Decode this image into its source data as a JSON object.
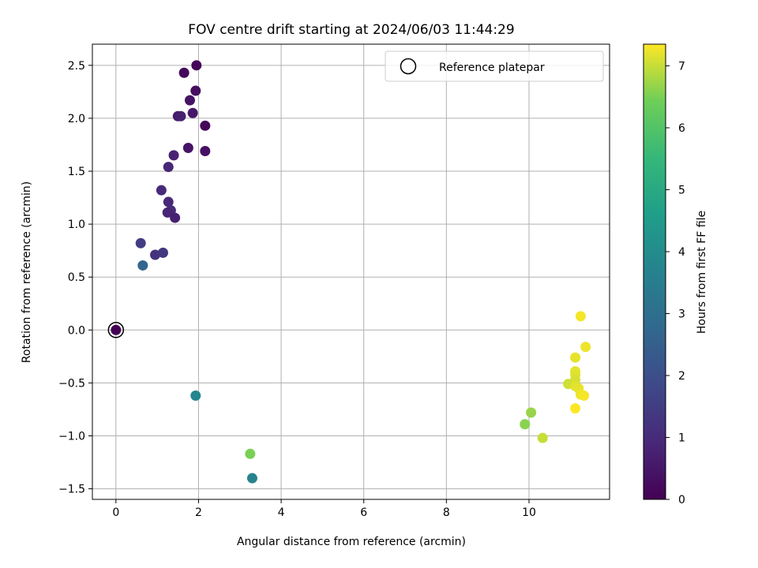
{
  "chart_data": {
    "type": "scatter",
    "title": "FOV centre drift starting at 2024/06/03 11:44:29",
    "xlabel": "Angular distance from reference (arcmin)",
    "ylabel": "Rotation from reference (arcmin)",
    "xlim": [
      -0.57,
      11.95
    ],
    "ylim": [
      -1.6,
      2.7
    ],
    "x_ticks": [
      0,
      2,
      4,
      6,
      8,
      10
    ],
    "y_ticks": [
      -1.5,
      -1.0,
      -0.5,
      0.0,
      0.5,
      1.0,
      1.5,
      2.0,
      2.5
    ],
    "x_tick_labels": [
      "0",
      "2",
      "4",
      "6",
      "8",
      "10"
    ],
    "y_tick_labels": [
      "−1.5",
      "−1.0",
      "−0.5",
      "0.0",
      "0.5",
      "1.0",
      "1.5",
      "2.0",
      "2.5"
    ],
    "grid": true,
    "colormap": "viridis",
    "colorbar": {
      "label": "Hours from first FF file",
      "range": [
        0,
        7.35
      ],
      "ticks": [
        0,
        1,
        2,
        3,
        4,
        5,
        6,
        7
      ],
      "tick_labels": [
        "0",
        "1",
        "2",
        "3",
        "4",
        "5",
        "6",
        "7"
      ]
    },
    "legend": {
      "position": "top-right",
      "entries": [
        "Reference platepar"
      ]
    },
    "reference_point": {
      "x": 0.0,
      "y": 0.0,
      "hours": 0.0
    },
    "points": [
      {
        "x": 1.95,
        "y": 2.5,
        "hours": 0.1
      },
      {
        "x": 1.65,
        "y": 2.43,
        "hours": 0.2
      },
      {
        "x": 1.93,
        "y": 2.26,
        "hours": 0.3
      },
      {
        "x": 1.79,
        "y": 2.17,
        "hours": 0.4
      },
      {
        "x": 1.86,
        "y": 2.05,
        "hours": 0.5
      },
      {
        "x": 1.5,
        "y": 2.02,
        "hours": 0.6
      },
      {
        "x": 1.57,
        "y": 2.02,
        "hours": 0.7
      },
      {
        "x": 2.16,
        "y": 1.93,
        "hours": 0.15
      },
      {
        "x": 1.75,
        "y": 1.72,
        "hours": 0.45
      },
      {
        "x": 2.16,
        "y": 1.69,
        "hours": 0.35
      },
      {
        "x": 1.4,
        "y": 1.65,
        "hours": 0.8
      },
      {
        "x": 1.27,
        "y": 1.54,
        "hours": 0.9
      },
      {
        "x": 1.1,
        "y": 1.32,
        "hours": 1.0
      },
      {
        "x": 1.27,
        "y": 1.21,
        "hours": 0.95
      },
      {
        "x": 1.33,
        "y": 1.13,
        "hours": 1.05
      },
      {
        "x": 1.25,
        "y": 1.11,
        "hours": 0.85
      },
      {
        "x": 1.43,
        "y": 1.06,
        "hours": 0.75
      },
      {
        "x": 0.6,
        "y": 0.82,
        "hours": 1.5
      },
      {
        "x": 0.95,
        "y": 0.71,
        "hours": 1.2
      },
      {
        "x": 1.14,
        "y": 0.73,
        "hours": 1.35
      },
      {
        "x": 0.65,
        "y": 0.61,
        "hours": 2.7
      },
      {
        "x": 1.93,
        "y": -0.62,
        "hours": 3.8
      },
      {
        "x": 3.25,
        "y": -1.17,
        "hours": 6.5
      },
      {
        "x": 3.3,
        "y": -1.4,
        "hours": 3.7
      },
      {
        "x": 9.9,
        "y": -0.89,
        "hours": 6.6
      },
      {
        "x": 10.05,
        "y": -0.78,
        "hours": 6.7
      },
      {
        "x": 10.33,
        "y": -1.02,
        "hours": 7.0
      },
      {
        "x": 11.25,
        "y": 0.13,
        "hours": 7.3
      },
      {
        "x": 11.37,
        "y": -0.16,
        "hours": 7.25
      },
      {
        "x": 11.12,
        "y": -0.26,
        "hours": 7.2
      },
      {
        "x": 11.12,
        "y": -0.39,
        "hours": 7.2
      },
      {
        "x": 11.12,
        "y": -0.42,
        "hours": 7.15
      },
      {
        "x": 11.12,
        "y": -0.47,
        "hours": 7.1
      },
      {
        "x": 10.95,
        "y": -0.51,
        "hours": 7.05
      },
      {
        "x": 11.12,
        "y": -0.53,
        "hours": 7.15
      },
      {
        "x": 11.2,
        "y": -0.55,
        "hours": 7.2
      },
      {
        "x": 11.25,
        "y": -0.61,
        "hours": 7.25
      },
      {
        "x": 11.33,
        "y": -0.62,
        "hours": 7.3
      },
      {
        "x": 11.12,
        "y": -0.74,
        "hours": 7.35
      }
    ]
  }
}
